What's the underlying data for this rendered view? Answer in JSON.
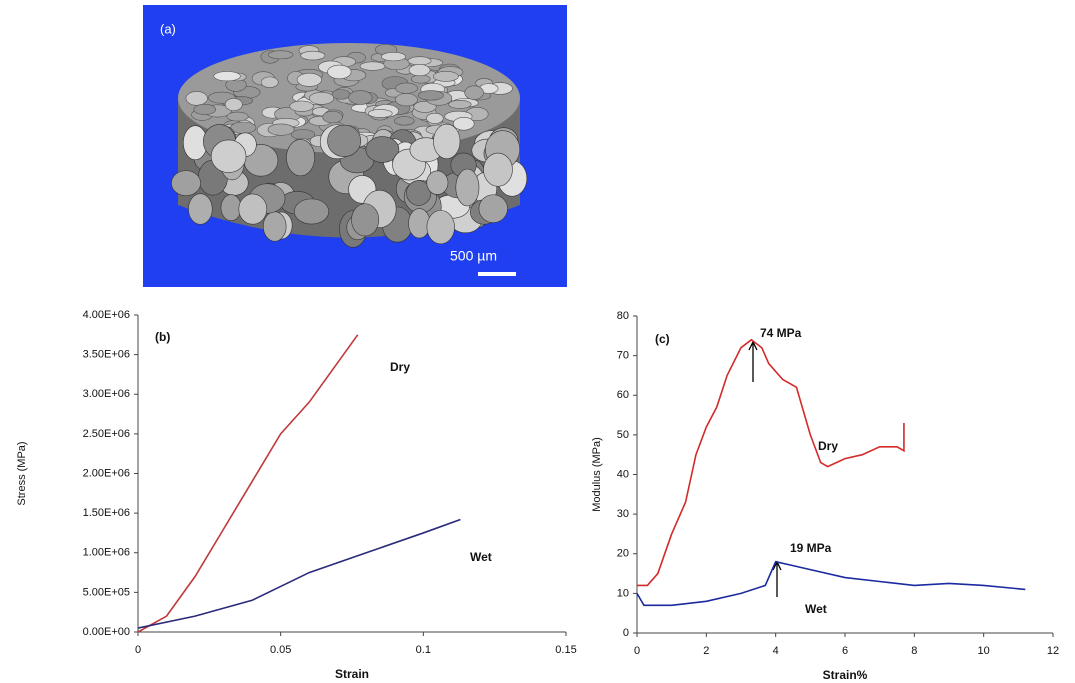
{
  "figure_a": {
    "label": "(a)",
    "scale_bar": "500 µm"
  },
  "chart_data": [
    {
      "type": "line",
      "panel_label": "(b)",
      "x_label": "Strain",
      "y_label": "Stress (MPa)",
      "xlim": [
        0,
        0.15
      ],
      "xticks": [
        0,
        0.05,
        0.1,
        0.15
      ],
      "ylim": [
        0,
        4000000
      ],
      "yticks": [
        {
          "value": 0,
          "label": "0.00E+00"
        },
        {
          "value": 500000,
          "label": "5.00E+05"
        },
        {
          "value": 1000000,
          "label": "1.00E+06"
        },
        {
          "value": 1500000,
          "label": "1.50E+06"
        },
        {
          "value": 2000000,
          "label": "2.00E+06"
        },
        {
          "value": 2500000,
          "label": "2.50E+06"
        },
        {
          "value": 3000000,
          "label": "3.00E+06"
        },
        {
          "value": 3500000,
          "label": "3.50E+06"
        },
        {
          "value": 4000000,
          "label": "4.00E+06"
        }
      ],
      "series": [
        {
          "name": "Dry",
          "color": "#c0393b",
          "x": [
            0,
            0.01,
            0.02,
            0.03,
            0.04,
            0.05,
            0.06,
            0.07,
            0.077
          ],
          "values": [
            0,
            200000,
            700000,
            1300000,
            1900000,
            2500000,
            2900000,
            3400000,
            3750000
          ]
        },
        {
          "name": "Wet",
          "color": "#2a2a7a",
          "x": [
            0,
            0.02,
            0.04,
            0.06,
            0.08,
            0.1,
            0.113
          ],
          "values": [
            50000,
            200000,
            400000,
            750000,
            1000000,
            1250000,
            1420000
          ]
        }
      ]
    },
    {
      "type": "line",
      "panel_label": "(c)",
      "x_label": "Strain%",
      "y_label": "Modulus (MPa)",
      "xlim": [
        0,
        12
      ],
      "xticks": [
        0,
        2,
        4,
        6,
        8,
        10,
        12
      ],
      "ylim": [
        0,
        80
      ],
      "yticks": [
        0,
        10,
        20,
        30,
        40,
        50,
        60,
        70,
        80
      ],
      "annotations": [
        "74 MPa",
        "19 MPa"
      ],
      "series": [
        {
          "name": "Dry",
          "color": "#d42a2a",
          "x": [
            0,
            0.3,
            0.6,
            1,
            1.4,
            1.7,
            2,
            2.3,
            2.6,
            3,
            3.3,
            3.6,
            3.8,
            4.2,
            4.6,
            5,
            5.3,
            5.5,
            6,
            6.5,
            7,
            7.5,
            7.7,
            7.7
          ],
          "values": [
            12,
            12,
            15,
            25,
            33,
            45,
            52,
            57,
            65,
            72,
            74,
            72,
            68,
            64,
            62,
            50,
            43,
            42,
            44,
            45,
            47,
            47,
            46,
            53
          ]
        },
        {
          "name": "Wet",
          "color": "#1c2aa0",
          "x": [
            0,
            0.2,
            1,
            2,
            3,
            3.7,
            4,
            4.5,
            5,
            6,
            7,
            8,
            9,
            10,
            11.2
          ],
          "values": [
            10,
            7,
            7,
            8,
            10,
            12,
            18,
            17,
            16,
            14,
            13,
            12,
            12.5,
            12,
            11
          ]
        }
      ]
    }
  ]
}
